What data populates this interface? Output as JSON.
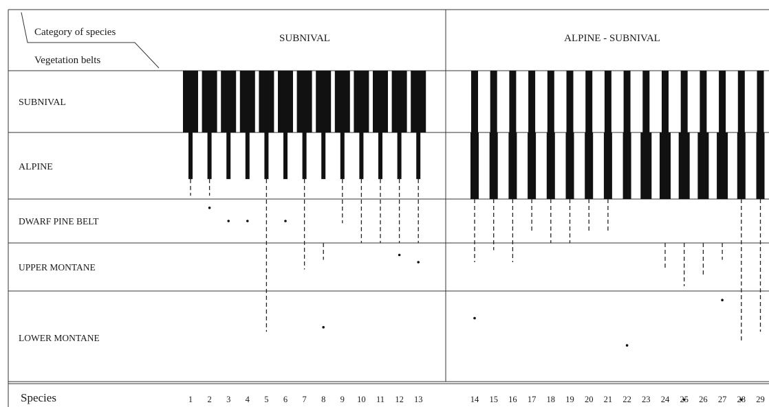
{
  "header": {
    "corner_top": "Category of species",
    "corner_bottom": "Vegetation belts",
    "group_1": "SUBNIVAL",
    "group_2": "ALPINE - SUBNIVAL"
  },
  "belts": [
    "SUBNIVAL",
    "ALPINE",
    "DWARF PINE BELT",
    "UPPER MONTANE",
    "LOWER MONTANE"
  ],
  "footer": {
    "species_label": "Species"
  },
  "species": [
    {
      "n": "1",
      "group": 1,
      "bars": [
        {
          "from": 0,
          "to": 1.7
        }
      ],
      "dashes": [
        [
          1.7,
          1.95
        ]
      ],
      "dots": []
    },
    {
      "n": "2",
      "group": 1,
      "bars": [
        {
          "from": 0,
          "to": 1.7
        }
      ],
      "dashes": [
        [
          1.7,
          1.95
        ]
      ],
      "dots": [
        2.2
      ]
    },
    {
      "n": "3",
      "group": 1,
      "bars": [
        {
          "from": 0,
          "to": 1.7
        }
      ],
      "dashes": [],
      "dots": [
        2.5
      ]
    },
    {
      "n": "4",
      "group": 1,
      "bars": [
        {
          "from": 0,
          "to": 1.7
        }
      ],
      "dashes": [],
      "dots": [
        2.5
      ]
    },
    {
      "n": "5",
      "group": 1,
      "bars": [
        {
          "from": 0,
          "to": 1.7
        }
      ],
      "dashes": [
        [
          1.7,
          4.45
        ]
      ],
      "dots": []
    },
    {
      "n": "6",
      "group": 1,
      "bars": [
        {
          "from": 0,
          "to": 1.7
        }
      ],
      "dashes": [],
      "dots": [
        2.5
      ]
    },
    {
      "n": "7",
      "group": 1,
      "bars": [
        {
          "from": 0,
          "to": 1.7
        }
      ],
      "dashes": [
        [
          1.7,
          3.55
        ]
      ],
      "dots": []
    },
    {
      "n": "8",
      "group": 1,
      "bars": [
        {
          "from": 0,
          "to": 1.7
        }
      ],
      "dashes": [
        [
          3.0,
          3.35
        ]
      ],
      "dots": [
        4.4
      ]
    },
    {
      "n": "9",
      "group": 1,
      "bars": [
        {
          "from": 0,
          "to": 1.7
        }
      ],
      "dashes": [
        [
          1.7,
          2.55
        ]
      ],
      "dots": []
    },
    {
      "n": "10",
      "group": 1,
      "bars": [
        {
          "from": 0,
          "to": 1.7
        }
      ],
      "dashes": [
        [
          1.7,
          3.0
        ]
      ],
      "dots": []
    },
    {
      "n": "11",
      "group": 1,
      "bars": [
        {
          "from": 0,
          "to": 1.7
        }
      ],
      "dashes": [
        [
          1.7,
          3.0
        ]
      ],
      "dots": []
    },
    {
      "n": "12",
      "group": 1,
      "bars": [
        {
          "from": 0,
          "to": 1.7
        }
      ],
      "dashes": [
        [
          1.7,
          3.0
        ]
      ],
      "dots": [
        3.25
      ]
    },
    {
      "n": "13",
      "group": 1,
      "bars": [
        {
          "from": 0,
          "to": 1.7
        }
      ],
      "dashes": [
        [
          1.7,
          3.0
        ]
      ],
      "dots": [
        3.4
      ]
    },
    {
      "n": "14",
      "group": 2,
      "bars": [
        {
          "from": 0,
          "to": 2
        }
      ],
      "dashes": [
        [
          2,
          3.4
        ]
      ],
      "dots": [
        4.3
      ]
    },
    {
      "n": "15",
      "group": 2,
      "bars": [
        {
          "from": 0,
          "to": 2
        }
      ],
      "dashes": [
        [
          2,
          3.15
        ]
      ],
      "dots": []
    },
    {
      "n": "16",
      "group": 2,
      "bars": [
        {
          "from": 0,
          "to": 2
        }
      ],
      "dashes": [
        [
          2,
          3.4
        ]
      ],
      "dots": []
    },
    {
      "n": "17",
      "group": 2,
      "bars": [
        {
          "from": 0,
          "to": 2
        }
      ],
      "dashes": [
        [
          2,
          2.75
        ]
      ],
      "dots": []
    },
    {
      "n": "18",
      "group": 2,
      "bars": [
        {
          "from": 0,
          "to": 2
        }
      ],
      "dashes": [
        [
          2,
          3.0
        ]
      ],
      "dots": []
    },
    {
      "n": "19",
      "group": 2,
      "bars": [
        {
          "from": 0,
          "to": 2
        }
      ],
      "dashes": [
        [
          2,
          3.0
        ]
      ],
      "dots": []
    },
    {
      "n": "20",
      "group": 2,
      "bars": [
        {
          "from": 0,
          "to": 2
        }
      ],
      "dashes": [
        [
          2,
          2.75
        ]
      ],
      "dots": []
    },
    {
      "n": "21",
      "group": 2,
      "bars": [
        {
          "from": 0,
          "to": 2
        }
      ],
      "dashes": [
        [
          2,
          2.75
        ]
      ],
      "dots": []
    },
    {
      "n": "22",
      "group": 2,
      "bars": [
        {
          "from": 0,
          "to": 2
        }
      ],
      "dashes": [],
      "dots": [
        4.6
      ]
    },
    {
      "n": "23",
      "group": 2,
      "bars": [
        {
          "from": 0,
          "to": 2
        }
      ],
      "dashes": [],
      "dots": []
    },
    {
      "n": "24",
      "group": 2,
      "bars": [
        {
          "from": 0,
          "to": 2
        }
      ],
      "dashes": [
        [
          3.0,
          3.55
        ]
      ],
      "dots": []
    },
    {
      "n": "25",
      "group": 2,
      "bars": [
        {
          "from": 0,
          "to": 2
        }
      ],
      "dashes": [
        [
          3.0,
          3.9
        ]
      ],
      "dots": [
        5.2
      ]
    },
    {
      "n": "26",
      "group": 2,
      "bars": [
        {
          "from": 0,
          "to": 2
        }
      ],
      "dashes": [
        [
          3.0,
          3.7
        ]
      ],
      "dots": []
    },
    {
      "n": "27",
      "group": 2,
      "bars": [
        {
          "from": 0,
          "to": 2
        }
      ],
      "dashes": [
        [
          3.0,
          3.35
        ]
      ],
      "dots": [
        4.1
      ]
    },
    {
      "n": "28",
      "group": 2,
      "bars": [
        {
          "from": 0,
          "to": 2
        }
      ],
      "dashes": [
        [
          2,
          4.55
        ]
      ],
      "dots": [
        5.2
      ]
    },
    {
      "n": "29",
      "group": 2,
      "bars": [
        {
          "from": 0,
          "to": 2
        }
      ],
      "dashes": [
        [
          2,
          4.45
        ]
      ],
      "dots": []
    }
  ]
}
